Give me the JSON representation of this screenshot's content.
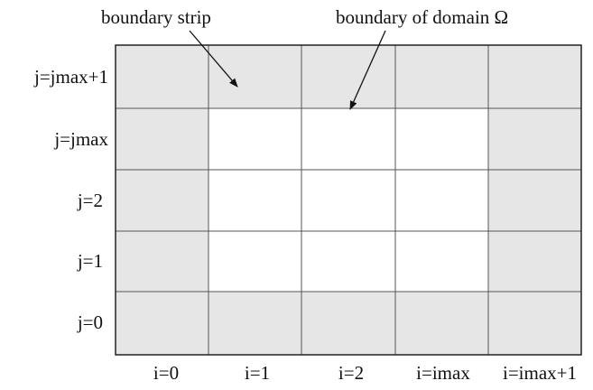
{
  "annotations": {
    "boundary_strip": "boundary strip",
    "boundary_domain": "boundary of domain Ω"
  },
  "row_labels": [
    "j=jmax+1",
    "j=jmax",
    "j=2",
    "j=1",
    "j=0"
  ],
  "column_labels": [
    "i=0",
    "i=1",
    "i=2",
    "i=imax",
    "i=imax+1"
  ],
  "colors": {
    "boundary_fill": "#e6e6e6",
    "interior_fill": "#ffffff",
    "outer_line": "#222222",
    "grid_line": "#555555"
  }
}
